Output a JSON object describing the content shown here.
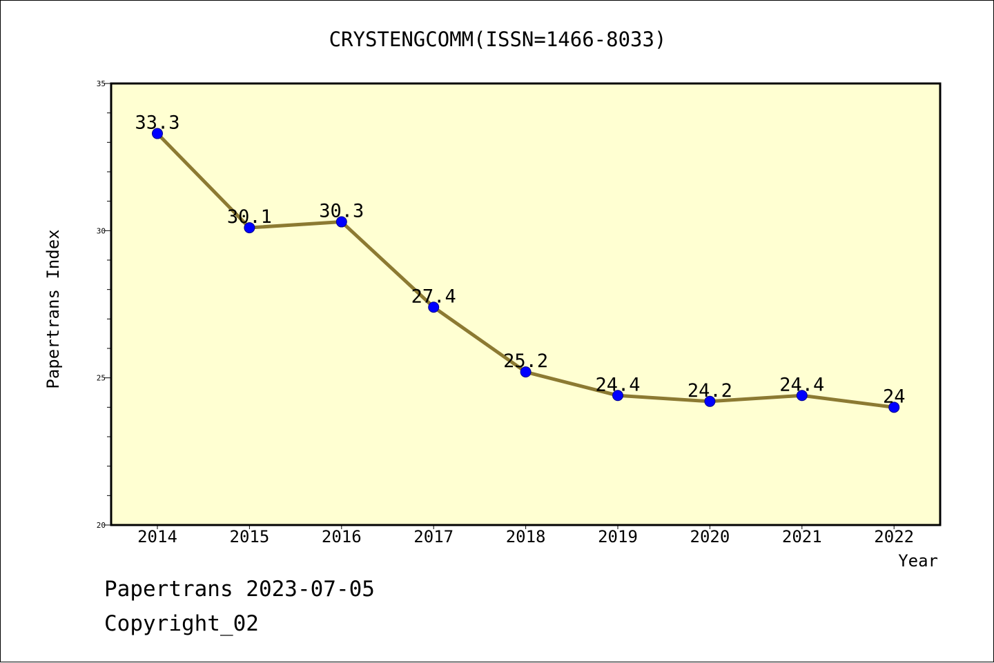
{
  "chart_data": {
    "type": "line",
    "title": "CRYSTENGCOMM(ISSN=1466-8033)",
    "xlabel": "Year",
    "ylabel": "Papertrans Index",
    "categories": [
      "2014",
      "2015",
      "2016",
      "2017",
      "2018",
      "2019",
      "2020",
      "2021",
      "2022"
    ],
    "values": [
      33.3,
      30.1,
      30.3,
      27.4,
      25.2,
      24.4,
      24.2,
      24.4,
      24
    ],
    "data_labels": [
      "33.3",
      "30.1",
      "30.3",
      "27.4",
      "25.2",
      "24.4",
      "24.2",
      "24.4",
      "24"
    ],
    "ylim": [
      20,
      35
    ],
    "yticks": [
      "20",
      "25",
      "30",
      "35"
    ],
    "grid": false,
    "colors": {
      "plot_background": "#ffffd2",
      "line": "#8c7a32",
      "marker": "#0000ff",
      "frame": "#000000"
    }
  },
  "footer": {
    "line1": "Papertrans 2023-07-05",
    "line2": "Copyright_02"
  }
}
